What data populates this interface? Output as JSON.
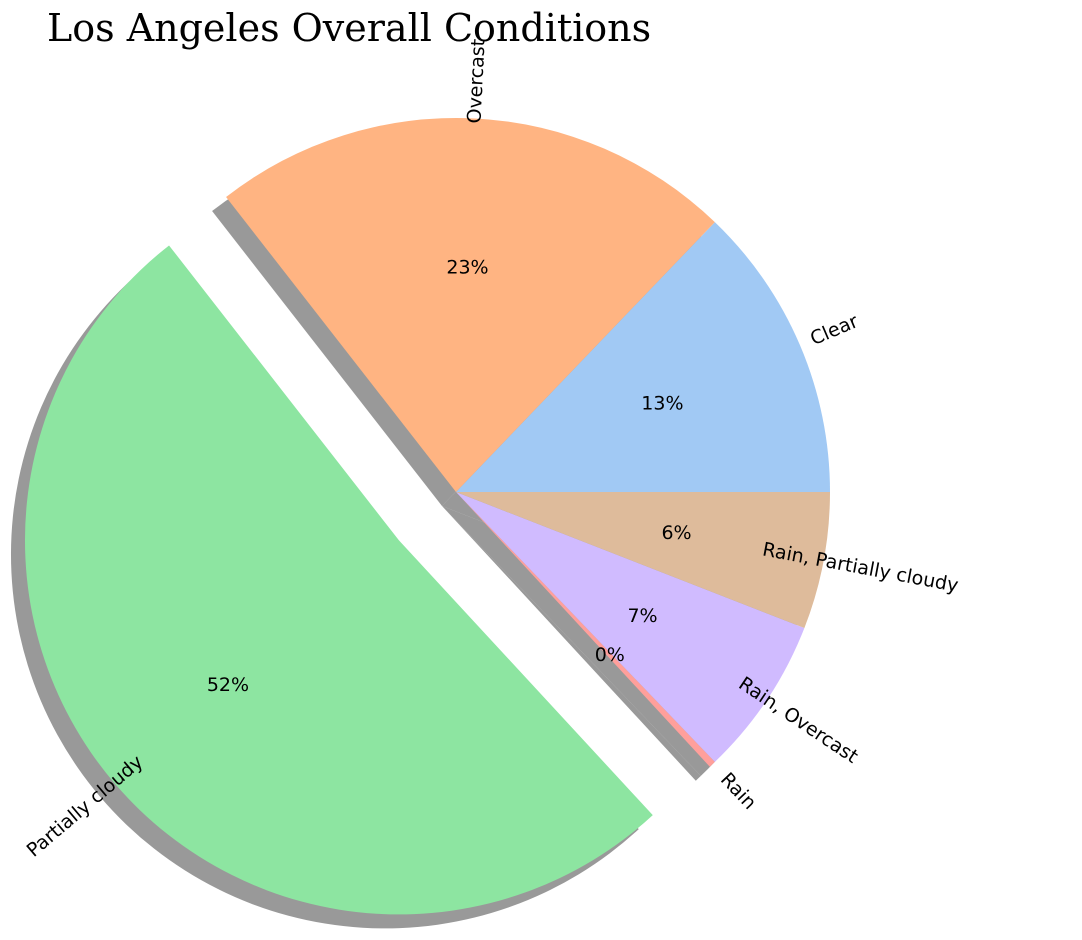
{
  "chart_data": {
    "type": "pie",
    "title": "Los Angeles Overall Conditions",
    "start_angle_deg": 0,
    "direction": "counterclockwise",
    "shadow": true,
    "slices": [
      {
        "label": "Clear",
        "value": 13,
        "pct_label": "13%",
        "color": "#a1c9f4",
        "explode": 0
      },
      {
        "label": "Overcast",
        "value": 23,
        "pct_label": "23%",
        "color": "#ffb482",
        "explode": 0
      },
      {
        "label": "Partially cloudy",
        "value": 52,
        "pct_label": "52%",
        "color": "#8de5a1",
        "explode": 0.2
      },
      {
        "label": "Rain",
        "value": 0.3,
        "pct_label": "0%",
        "color": "#ff9f9b",
        "explode": 0
      },
      {
        "label": "Rain, Overcast",
        "value": 7,
        "pct_label": "7%",
        "color": "#d0bbff",
        "explode": 0
      },
      {
        "label": "Rain, Partially cloudy",
        "value": 6,
        "pct_label": "6%",
        "color": "#debb9b",
        "explode": 0
      }
    ]
  }
}
